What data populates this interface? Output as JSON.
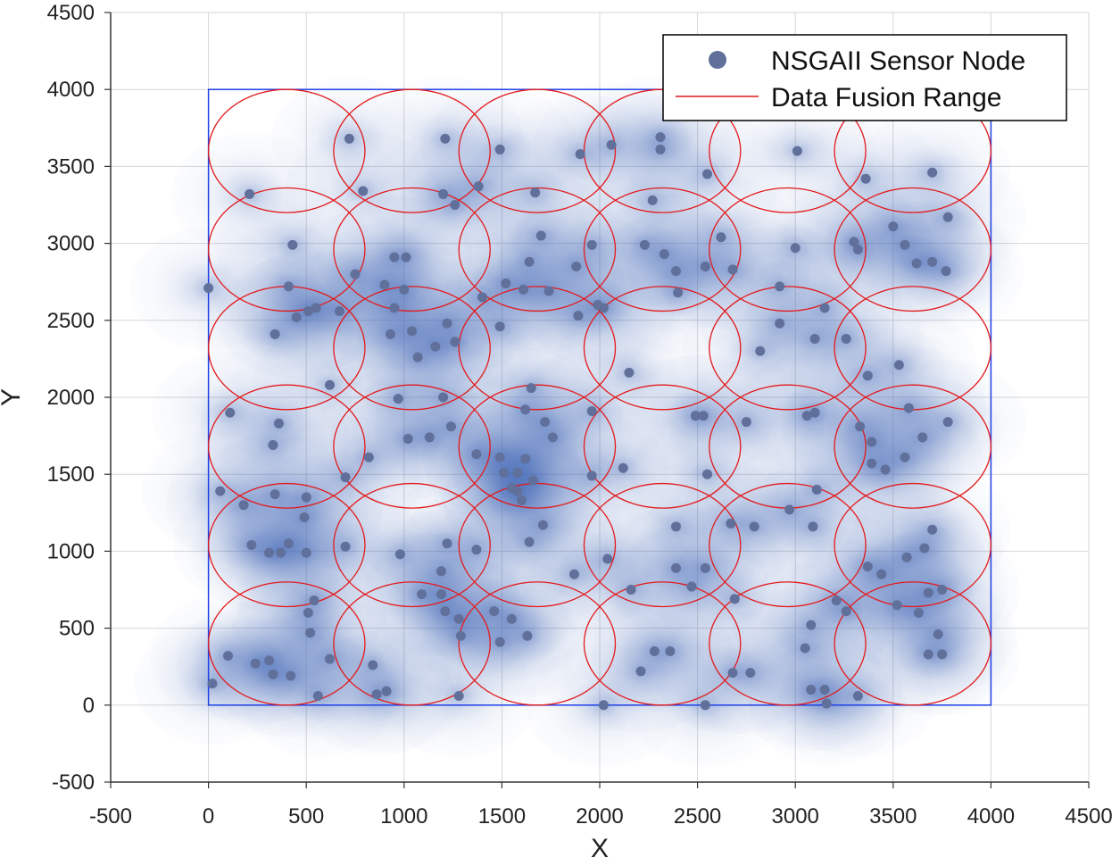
{
  "chart_data": {
    "type": "scatter",
    "title": "",
    "xlabel": "X",
    "ylabel": "Y",
    "xlim": [
      -500,
      4500
    ],
    "ylim": [
      -500,
      4500
    ],
    "xticks": [
      "-500",
      "0",
      "500",
      "1000",
      "1500",
      "2000",
      "2500",
      "3000",
      "3500",
      "4000",
      "4500"
    ],
    "yticks": [
      "-500",
      "0",
      "500",
      "1000",
      "1500",
      "2000",
      "2500",
      "3000",
      "3500",
      "4000",
      "4500"
    ],
    "grid": true,
    "legend_position": "top-right",
    "region": {
      "x": [
        0,
        4000
      ],
      "y": [
        0,
        4000
      ]
    },
    "coverage_radius": 400,
    "fusion_range": {
      "name": "Data Fusion Range",
      "radius": 400,
      "centers_x": [
        400,
        1040,
        1680,
        2320,
        2960,
        3600
      ],
      "centers_y": [
        3600,
        2960,
        2320,
        1680,
        1040,
        400
      ]
    },
    "series": [
      {
        "name": "NSGAII Sensor Node",
        "points": [
          [
            720,
            3680
          ],
          [
            1210,
            3680
          ],
          [
            1490,
            3610
          ],
          [
            1900,
            3580
          ],
          [
            2060,
            3640
          ],
          [
            2310,
            3690
          ],
          [
            2310,
            3610
          ],
          [
            3010,
            3600
          ],
          [
            3700,
            3460
          ],
          [
            210,
            3320
          ],
          [
            790,
            3340
          ],
          [
            1200,
            3320
          ],
          [
            1260,
            3250
          ],
          [
            1380,
            3370
          ],
          [
            1670,
            3330
          ],
          [
            2270,
            3280
          ],
          [
            2550,
            3450
          ],
          [
            3360,
            3420
          ],
          [
            3000,
            2970
          ],
          [
            3560,
            2990
          ],
          [
            3780,
            3170
          ],
          [
            3500,
            3110
          ],
          [
            3620,
            2870
          ],
          [
            3700,
            2880
          ],
          [
            3770,
            2820
          ],
          [
            3320,
            2960
          ],
          [
            3300,
            3010
          ],
          [
            2620,
            3040
          ],
          [
            2540,
            2850
          ],
          [
            2680,
            2830
          ],
          [
            2390,
            2820
          ],
          [
            2330,
            2930
          ],
          [
            2230,
            2990
          ],
          [
            2400,
            2680
          ],
          [
            1640,
            2880
          ],
          [
            1700,
            3050
          ],
          [
            1960,
            2990
          ],
          [
            1880,
            2850
          ],
          [
            950,
            2910
          ],
          [
            1010,
            2910
          ],
          [
            750,
            2800
          ],
          [
            430,
            2990
          ],
          [
            410,
            2720
          ],
          [
            0,
            2710
          ],
          [
            900,
            2730
          ],
          [
            1000,
            2700
          ],
          [
            1520,
            2740
          ],
          [
            1400,
            2650
          ],
          [
            1610,
            2700
          ],
          [
            1740,
            2690
          ],
          [
            1890,
            2530
          ],
          [
            1990,
            2600
          ],
          [
            2020,
            2580
          ],
          [
            2920,
            2720
          ],
          [
            2920,
            2480
          ],
          [
            3100,
            2380
          ],
          [
            3150,
            2580
          ],
          [
            3260,
            2380
          ],
          [
            2820,
            2300
          ],
          [
            2150,
            2160
          ],
          [
            1650,
            2060
          ],
          [
            3530,
            2210
          ],
          [
            3370,
            2140
          ],
          [
            1490,
            2460
          ],
          [
            1220,
            2480
          ],
          [
            1260,
            2360
          ],
          [
            1160,
            2330
          ],
          [
            1070,
            2260
          ],
          [
            1040,
            2430
          ],
          [
            930,
            2410
          ],
          [
            950,
            2580
          ],
          [
            670,
            2560
          ],
          [
            550,
            2580
          ],
          [
            510,
            2560
          ],
          [
            450,
            2520
          ],
          [
            340,
            2410
          ],
          [
            620,
            2080
          ],
          [
            110,
            1900
          ],
          [
            360,
            1830
          ],
          [
            330,
            1690
          ],
          [
            970,
            1990
          ],
          [
            1020,
            1730
          ],
          [
            820,
            1610
          ],
          [
            700,
            1480
          ],
          [
            1130,
            1740
          ],
          [
            1240,
            1810
          ],
          [
            1200,
            2000
          ],
          [
            1370,
            1630
          ],
          [
            1490,
            1610
          ],
          [
            1510,
            1510
          ],
          [
            1580,
            1510
          ],
          [
            1620,
            1600
          ],
          [
            1660,
            1460
          ],
          [
            1550,
            1410
          ],
          [
            1620,
            1920
          ],
          [
            1720,
            1840
          ],
          [
            1760,
            1740
          ],
          [
            1960,
            1490
          ],
          [
            1960,
            1910
          ],
          [
            2120,
            1540
          ],
          [
            2490,
            1880
          ],
          [
            2530,
            1880
          ],
          [
            2550,
            1500
          ],
          [
            2750,
            1840
          ],
          [
            3060,
            1880
          ],
          [
            3100,
            1900
          ],
          [
            3330,
            1810
          ],
          [
            3390,
            1710
          ],
          [
            3390,
            1570
          ],
          [
            3460,
            1530
          ],
          [
            3560,
            1610
          ],
          [
            3580,
            1930
          ],
          [
            3650,
            1740
          ],
          [
            3780,
            1840
          ],
          [
            3110,
            1400
          ],
          [
            3090,
            1160
          ],
          [
            2970,
            1270
          ],
          [
            2670,
            1180
          ],
          [
            2790,
            1160
          ],
          [
            2390,
            1160
          ],
          [
            2390,
            890
          ],
          [
            2040,
            950
          ],
          [
            1710,
            1170
          ],
          [
            1640,
            1060
          ],
          [
            1600,
            1330
          ],
          [
            1580,
            1390
          ],
          [
            1370,
            1010
          ],
          [
            1220,
            1050
          ],
          [
            1190,
            870
          ],
          [
            980,
            980
          ],
          [
            700,
            1030
          ],
          [
            490,
            1220
          ],
          [
            500,
            990
          ],
          [
            500,
            1350
          ],
          [
            410,
            1050
          ],
          [
            310,
            990
          ],
          [
            340,
            1370
          ],
          [
            180,
            1300
          ],
          [
            60,
            1390
          ],
          [
            220,
            1040
          ],
          [
            370,
            990
          ],
          [
            1870,
            850
          ],
          [
            2160,
            750
          ],
          [
            2540,
            890
          ],
          [
            2690,
            690
          ],
          [
            2470,
            770
          ],
          [
            3210,
            680
          ],
          [
            3260,
            610
          ],
          [
            3370,
            900
          ],
          [
            3440,
            850
          ],
          [
            3570,
            960
          ],
          [
            3700,
            1140
          ],
          [
            3660,
            1020
          ],
          [
            3520,
            650
          ],
          [
            3630,
            600
          ],
          [
            3680,
            730
          ],
          [
            3750,
            750
          ],
          [
            3730,
            460
          ],
          [
            3680,
            330
          ],
          [
            3750,
            330
          ],
          [
            3320,
            60
          ],
          [
            3160,
            10
          ],
          [
            3080,
            100
          ],
          [
            3150,
            100
          ],
          [
            3050,
            370
          ],
          [
            3080,
            520
          ],
          [
            2770,
            210
          ],
          [
            2680,
            210
          ],
          [
            2540,
            0
          ],
          [
            2360,
            350
          ],
          [
            2280,
            350
          ],
          [
            2210,
            220
          ],
          [
            2020,
            0
          ],
          [
            1630,
            450
          ],
          [
            1550,
            560
          ],
          [
            1490,
            410
          ],
          [
            1460,
            610
          ],
          [
            1290,
            450
          ],
          [
            1280,
            560
          ],
          [
            1210,
            610
          ],
          [
            1280,
            60
          ],
          [
            1090,
            720
          ],
          [
            910,
            90
          ],
          [
            860,
            70
          ],
          [
            840,
            260
          ],
          [
            620,
            300
          ],
          [
            560,
            60
          ],
          [
            540,
            680
          ],
          [
            510,
            600
          ],
          [
            520,
            470
          ],
          [
            420,
            190
          ],
          [
            330,
            200
          ],
          [
            310,
            290
          ],
          [
            240,
            270
          ],
          [
            100,
            320
          ],
          [
            20,
            140
          ],
          [
            1190,
            720
          ]
        ]
      }
    ]
  },
  "colors": {
    "node": "#60709a",
    "coverage": "#3d63b4",
    "fusion": "#e31a1c",
    "region": "#1f3fe8",
    "axis": "#333333",
    "grid": "#d7d7d7"
  }
}
